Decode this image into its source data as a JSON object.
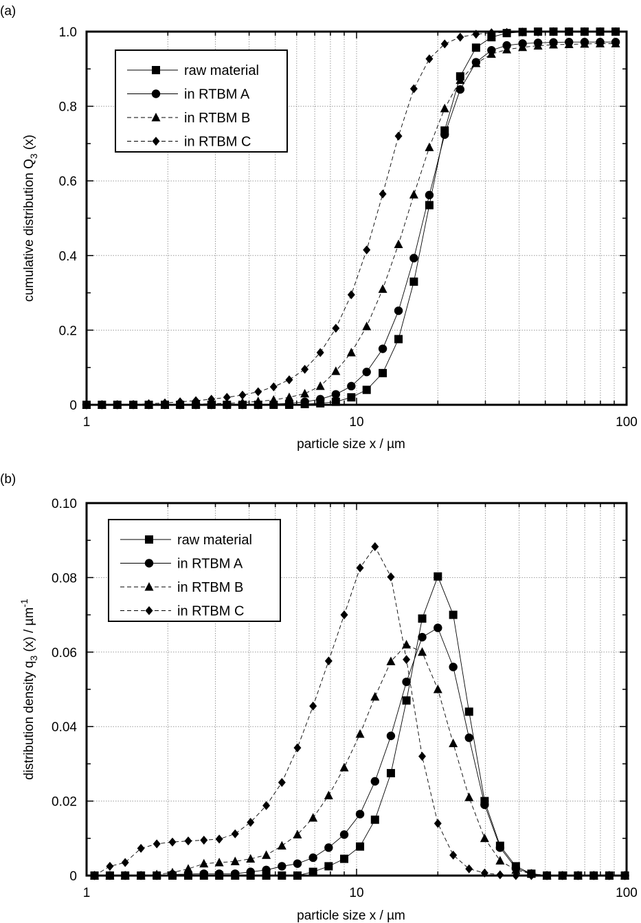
{
  "chart_data": [
    {
      "panel_label": "(a)",
      "type": "line",
      "xscale": "log",
      "xlim": [
        1,
        100
      ],
      "ylim": [
        0,
        1.0
      ],
      "xlabel": "particle size x / µm",
      "ylabel_main": "cumulative distribution Q",
      "ylabel_sub": "3",
      "ylabel_tail": " (x)",
      "xticks": [
        {
          "v": 1,
          "label": "1"
        },
        {
          "v": 10,
          "label": "10"
        },
        {
          "v": 100,
          "label": "100"
        }
      ],
      "yticks": [
        {
          "v": 0,
          "label": "0"
        },
        {
          "v": 0.2,
          "label": "0.2"
        },
        {
          "v": 0.4,
          "label": "0.4"
        },
        {
          "v": 0.6,
          "label": "0.6"
        },
        {
          "v": 0.8,
          "label": "0.8"
        },
        {
          "v": 1.0,
          "label": "1.0"
        }
      ],
      "grid": true,
      "legend_position": "top-left",
      "series": [
        {
          "name": "raw material",
          "marker": "square",
          "dash": "solid",
          "x": [
            1.0,
            1.14,
            1.3,
            1.49,
            1.7,
            1.95,
            2.22,
            2.54,
            2.9,
            3.31,
            3.78,
            4.32,
            4.93,
            5.63,
            6.43,
            7.34,
            8.38,
            9.56,
            10.9,
            12.5,
            14.3,
            16.3,
            18.6,
            21.2,
            24.2,
            27.7,
            31.6,
            36.0,
            41.2,
            47.0,
            53.6,
            61.2,
            69.9,
            79.8,
            91.1
          ],
          "y": [
            0,
            0,
            0,
            0,
            0,
            0,
            0,
            0,
            0,
            0,
            0,
            0,
            0,
            0,
            0.002,
            0.004,
            0.008,
            0.02,
            0.04,
            0.085,
            0.176,
            0.33,
            0.535,
            0.735,
            0.88,
            0.957,
            0.985,
            0.996,
            0.999,
            1.0,
            1.0,
            1.0,
            1.0,
            1.0,
            1.0
          ]
        },
        {
          "name": "in RTBM A",
          "marker": "circle",
          "dash": "solid",
          "x": [
            1.0,
            1.14,
            1.3,
            1.49,
            1.7,
            1.95,
            2.22,
            2.54,
            2.9,
            3.31,
            3.78,
            4.32,
            4.93,
            5.63,
            6.43,
            7.34,
            8.38,
            9.56,
            10.9,
            12.5,
            14.3,
            16.3,
            18.6,
            21.2,
            24.2,
            27.7,
            31.6,
            36.0,
            41.2,
            47.0,
            53.6,
            61.2,
            69.9,
            79.8,
            91.1
          ],
          "y": [
            0,
            0,
            0,
            0,
            0,
            0,
            0,
            0,
            0,
            0,
            0,
            0,
            0.002,
            0.004,
            0.008,
            0.015,
            0.028,
            0.05,
            0.088,
            0.15,
            0.252,
            0.393,
            0.562,
            0.724,
            0.845,
            0.918,
            0.95,
            0.963,
            0.968,
            0.97,
            0.971,
            0.972,
            0.972,
            0.972,
            0.972
          ]
        },
        {
          "name": "in RTBM B",
          "marker": "triangle",
          "dash": "dashed",
          "x": [
            1.0,
            1.14,
            1.3,
            1.49,
            1.7,
            1.95,
            2.22,
            2.54,
            2.9,
            3.31,
            3.78,
            4.32,
            4.93,
            5.63,
            6.43,
            7.34,
            8.38,
            9.56,
            10.9,
            12.5,
            14.3,
            16.3,
            18.6,
            21.2,
            24.2,
            27.7,
            31.6,
            36.0,
            41.2,
            47.0,
            53.6,
            61.2,
            69.9,
            79.8,
            91.1
          ],
          "y": [
            0,
            0,
            0,
            0,
            0,
            0,
            0.001,
            0.002,
            0.003,
            0.004,
            0.006,
            0.009,
            0.013,
            0.02,
            0.03,
            0.05,
            0.09,
            0.14,
            0.21,
            0.31,
            0.43,
            0.563,
            0.69,
            0.794,
            0.87,
            0.915,
            0.94,
            0.952,
            0.958,
            0.962,
            0.965,
            0.966,
            0.967,
            0.968,
            0.968
          ]
        },
        {
          "name": "in RTBM C",
          "marker": "diamond",
          "dash": "dashed",
          "x": [
            1.0,
            1.14,
            1.3,
            1.49,
            1.7,
            1.95,
            2.22,
            2.54,
            2.9,
            3.31,
            3.78,
            4.32,
            4.93,
            5.63,
            6.43,
            7.34,
            8.38,
            9.56,
            10.9,
            12.5,
            14.3,
            16.3,
            18.6,
            21.2,
            24.2,
            27.7,
            31.6,
            36.0,
            41.2,
            47.0,
            53.6,
            61.2,
            69.9,
            79.8,
            91.1
          ],
          "y": [
            0,
            0,
            0,
            0.001,
            0.003,
            0.005,
            0.008,
            0.011,
            0.015,
            0.02,
            0.026,
            0.035,
            0.048,
            0.067,
            0.095,
            0.14,
            0.205,
            0.295,
            0.415,
            0.565,
            0.72,
            0.847,
            0.927,
            0.967,
            0.985,
            0.993,
            0.997,
            0.998,
            0.999,
            0.999,
            1.0,
            1.0,
            1.0,
            1.0,
            1.0
          ]
        }
      ]
    },
    {
      "panel_label": "(b)",
      "type": "line",
      "xscale": "log",
      "xlim": [
        1,
        100
      ],
      "ylim": [
        0,
        0.1
      ],
      "xlabel": "particle size x / µm",
      "ylabel_main": "distribution density  q",
      "ylabel_sub": "3",
      "ylabel_tail": " (x) / µm",
      "ylabel_sup": "-1",
      "xticks": [
        {
          "v": 1,
          "label": "1"
        },
        {
          "v": 10,
          "label": "10"
        },
        {
          "v": 100,
          "label": "100"
        }
      ],
      "yticks": [
        {
          "v": 0,
          "label": "0"
        },
        {
          "v": 0.02,
          "label": "0.02"
        },
        {
          "v": 0.04,
          "label": "0.04"
        },
        {
          "v": 0.06,
          "label": "0.06"
        },
        {
          "v": 0.08,
          "label": "0.08"
        },
        {
          "v": 0.1,
          "label": "0.10"
        }
      ],
      "grid": true,
      "legend_position": "top-left",
      "series": [
        {
          "name": "raw material",
          "marker": "square",
          "dash": "solid",
          "x": [
            1.07,
            1.22,
            1.39,
            1.59,
            1.82,
            2.08,
            2.38,
            2.72,
            3.1,
            3.55,
            4.05,
            4.63,
            5.29,
            6.04,
            6.9,
            7.88,
            9.0,
            10.3,
            11.7,
            13.4,
            15.3,
            17.5,
            20.0,
            22.8,
            26.1,
            29.8,
            34.0,
            38.9,
            44.4,
            50.7,
            57.9,
            66.1,
            75.6,
            86.3,
            98.6
          ],
          "y": [
            0,
            0,
            0,
            0,
            0,
            0,
            0,
            0,
            0,
            0,
            0,
            0,
            0,
            0,
            0.001,
            0.0025,
            0.0045,
            0.0078,
            0.015,
            0.0275,
            0.047,
            0.069,
            0.0803,
            0.07,
            0.044,
            0.02,
            0.008,
            0.0025,
            0.0005,
            0,
            0,
            0,
            0,
            0,
            0
          ]
        },
        {
          "name": "in RTBM A",
          "marker": "circle",
          "dash": "solid",
          "x": [
            1.07,
            1.22,
            1.39,
            1.59,
            1.82,
            2.08,
            2.38,
            2.72,
            3.1,
            3.55,
            4.05,
            4.63,
            5.29,
            6.04,
            6.9,
            7.88,
            9.0,
            10.3,
            11.7,
            13.4,
            15.3,
            17.5,
            20.0,
            22.8,
            26.1,
            29.8,
            34.0,
            38.9,
            44.4,
            50.7,
            57.9,
            66.1,
            75.6,
            86.3,
            98.6
          ],
          "y": [
            0,
            0,
            0,
            0,
            0,
            0.0003,
            0.0004,
            0.0005,
            0.0005,
            0.0005,
            0.001,
            0.0015,
            0.0025,
            0.0032,
            0.0048,
            0.0075,
            0.011,
            0.0165,
            0.0253,
            0.0375,
            0.052,
            0.064,
            0.0665,
            0.056,
            0.037,
            0.019,
            0.0075,
            0.002,
            0.0005,
            0,
            0,
            0,
            0,
            0,
            0
          ]
        },
        {
          "name": "in RTBM B",
          "marker": "triangle",
          "dash": "dashed",
          "x": [
            1.07,
            1.22,
            1.39,
            1.59,
            1.82,
            2.08,
            2.38,
            2.72,
            3.1,
            3.55,
            4.05,
            4.63,
            5.29,
            6.04,
            6.9,
            7.88,
            9.0,
            10.3,
            11.7,
            13.4,
            15.3,
            17.5,
            20.0,
            22.8,
            26.1,
            29.8,
            34.0,
            38.9,
            44.4,
            50.7,
            57.9,
            66.1,
            75.6,
            86.3,
            98.6
          ],
          "y": [
            0,
            0,
            0,
            0,
            0.0003,
            0.0008,
            0.0018,
            0.0032,
            0.0035,
            0.0038,
            0.0045,
            0.0055,
            0.008,
            0.011,
            0.0155,
            0.0215,
            0.029,
            0.038,
            0.048,
            0.0575,
            0.062,
            0.06,
            0.05,
            0.0355,
            0.021,
            0.01,
            0.004,
            0.0015,
            0.0005,
            0,
            0,
            0,
            0,
            0,
            0
          ]
        },
        {
          "name": "in RTBM C",
          "marker": "diamond",
          "dash": "dashed",
          "x": [
            1.07,
            1.22,
            1.39,
            1.59,
            1.82,
            2.08,
            2.38,
            2.72,
            3.1,
            3.55,
            4.05,
            4.63,
            5.29,
            6.04,
            6.9,
            7.88,
            9.0,
            10.3,
            11.7,
            13.4,
            15.3,
            17.5,
            20.0,
            22.8,
            26.1,
            29.8,
            34.0,
            38.9,
            44.4,
            50.7,
            57.9,
            66.1,
            75.6,
            86.3,
            98.6
          ],
          "y": [
            0,
            0.0025,
            0.0035,
            0.0073,
            0.0085,
            0.009,
            0.0093,
            0.0095,
            0.0098,
            0.0112,
            0.0143,
            0.0188,
            0.025,
            0.0343,
            0.0455,
            0.0576,
            0.07,
            0.0826,
            0.0883,
            0.0802,
            0.058,
            0.032,
            0.014,
            0.0055,
            0.0018,
            0.0007,
            0.0002,
            0,
            0,
            0,
            0,
            0,
            0,
            0,
            0
          ]
        }
      ]
    }
  ]
}
